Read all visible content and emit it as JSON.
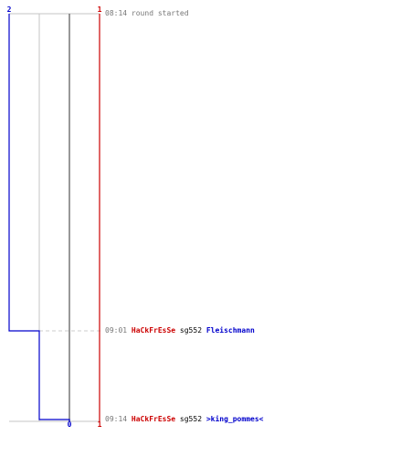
{
  "chart_data": {
    "type": "line",
    "title": "",
    "xlabel": "",
    "ylabel": "",
    "y_range": [
      0,
      2
    ],
    "series": [
      {
        "team": "blue",
        "color": "#0000cc",
        "start_value": 2,
        "steps": [
          {
            "time": "09:01",
            "value": 1
          },
          {
            "time": "09:14",
            "value": 0
          }
        ],
        "end_label": "0"
      },
      {
        "team": "red",
        "color": "#cc0000",
        "start_value": 1,
        "steps": [],
        "end_label": "1"
      }
    ],
    "top_labels": [
      {
        "text": "2",
        "color": "#0000cc"
      },
      {
        "text": "1",
        "color": "#cc0000"
      }
    ],
    "events": [
      {
        "time": "08:14",
        "text": "round started",
        "text_color": "#777777"
      },
      {
        "time": "09:01",
        "killer": "HaCkFrEsSe",
        "killer_color": "#cc0000",
        "weapon": "sg552",
        "victim": "Fleischmann",
        "victim_color": "#0000cc"
      },
      {
        "time": "09:14",
        "killer": "HaCkFrEsSe",
        "killer_color": "#cc0000",
        "weapon": "sg552",
        "victim": ">king_pommes<",
        "victim_color": "#0000cc"
      }
    ]
  }
}
